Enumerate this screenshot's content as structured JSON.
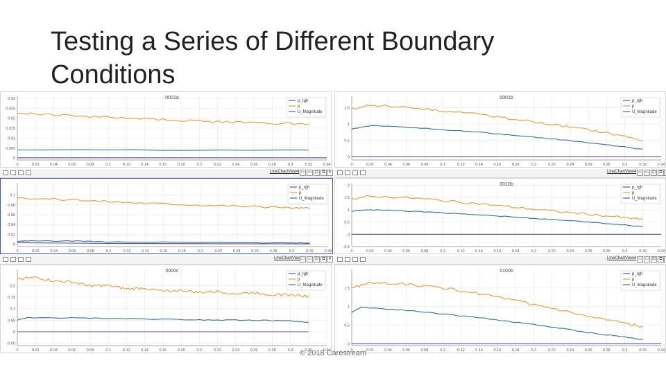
{
  "slide": {
    "title": "Testing a Series of Different Boundary Conditions",
    "footer": "© 2018 Carestream"
  },
  "toolbar": {
    "view_label": "LineChartView4",
    "buttons": [
      "▭",
      "▭",
      "⊡",
      "⧉",
      "✕"
    ]
  },
  "colors": {
    "p_rgh": "#5b4bb0",
    "p": "#ef9a2a",
    "U_Magnitude": "#2f6fa8",
    "grid": "#e6e6e6"
  },
  "chart_data": [
    {
      "type": "line",
      "title": "0001a",
      "xlim": [
        0,
        0.34
      ],
      "xticks": [
        "0",
        "0.02",
        "0.04",
        "0.06",
        "0.08",
        "0.1",
        "0.12",
        "0.14",
        "0.16",
        "0.18",
        "0.2",
        "0.22",
        "0.24",
        "0.26",
        "0.28",
        "0.3",
        "0.32",
        "0.34"
      ],
      "ylim": [
        -0.001,
        0.031
      ],
      "yticks": [
        "0",
        "0.005",
        "0.01",
        "0.015",
        "0.02",
        "0.025",
        "0.03"
      ],
      "legend": [
        "p_rgh",
        "p",
        "U_Magnitude"
      ],
      "legend_position": "top-right",
      "series": [
        {
          "name": "p_rgh",
          "x": [
            0,
            0.34
          ],
          "y": [
            0.0001,
            0.0001
          ]
        },
        {
          "name": "p",
          "x": [
            0,
            0.05,
            0.1,
            0.15,
            0.2,
            0.25,
            0.3,
            0.32
          ],
          "y": [
            0.0225,
            0.0215,
            0.0205,
            0.0195,
            0.0185,
            0.0178,
            0.0172,
            0.017
          ]
        },
        {
          "name": "U_Magnitude",
          "x": [
            0,
            0.32
          ],
          "y": [
            0.004,
            0.004
          ]
        }
      ]
    },
    {
      "type": "line",
      "title": "0001b",
      "xlim": [
        0,
        0.34
      ],
      "xticks": [
        "0",
        "0.02",
        "0.04",
        "0.06",
        "0.08",
        "0.1",
        "0.12",
        "0.14",
        "0.16",
        "0.18",
        "0.2",
        "0.22",
        "0.24",
        "0.26",
        "0.28",
        "0.3",
        "0.32",
        "0.34"
      ],
      "ylim": [
        -0.1,
        1.85
      ],
      "yticks": [
        "0",
        "0.5",
        "1",
        "1.5"
      ],
      "legend": [
        "p_rgh",
        "p",
        "U_Magnitude"
      ],
      "legend_position": "top-right",
      "series": [
        {
          "name": "p_rgh",
          "x": [
            0,
            0.34
          ],
          "y": [
            0,
            0
          ]
        },
        {
          "name": "p",
          "x": [
            0,
            0.02,
            0.06,
            0.1,
            0.14,
            0.18,
            0.22,
            0.26,
            0.3,
            0.32
          ],
          "y": [
            1.45,
            1.58,
            1.52,
            1.4,
            1.3,
            1.15,
            0.98,
            0.82,
            0.62,
            0.5
          ]
        },
        {
          "name": "U_Magnitude",
          "x": [
            0,
            0.02,
            0.06,
            0.1,
            0.14,
            0.18,
            0.22,
            0.26,
            0.3,
            0.32
          ],
          "y": [
            0.85,
            0.95,
            0.9,
            0.83,
            0.75,
            0.65,
            0.55,
            0.43,
            0.3,
            0.22
          ]
        }
      ]
    },
    {
      "type": "line",
      "title": "",
      "xlim": [
        0,
        0.34
      ],
      "xticks": [
        "0",
        "0.02",
        "0.04",
        "0.06",
        "0.08",
        "0.1",
        "0.12",
        "0.14",
        "0.16",
        "0.18",
        "0.2",
        "0.22",
        "0.24",
        "0.26",
        "0.28",
        "0.3",
        "0.32",
        "0.34"
      ],
      "ylim": [
        -0.005,
        0.125
      ],
      "yticks": [
        "0",
        "0.02",
        "0.04",
        "0.06",
        "0.08",
        "0.1"
      ],
      "legend": [
        "p_rgh",
        "p",
        "U_Magnitude"
      ],
      "legend_position": "top-right",
      "series": [
        {
          "name": "p_rgh",
          "x": [
            0,
            0.02,
            0.06,
            0.1,
            0.2,
            0.3,
            0.32
          ],
          "y": [
            0.003,
            0.0025,
            0.002,
            0.0015,
            0.001,
            0.0005,
            0.0003
          ]
        },
        {
          "name": "p",
          "x": [
            0,
            0.05,
            0.1,
            0.15,
            0.2,
            0.25,
            0.3,
            0.32
          ],
          "y": [
            0.095,
            0.091,
            0.087,
            0.083,
            0.08,
            0.077,
            0.074,
            0.073
          ]
        },
        {
          "name": "U_Magnitude",
          "x": [
            0,
            0.01,
            0.06,
            0.1,
            0.2,
            0.3,
            0.32
          ],
          "y": [
            0.0055,
            0.0065,
            0.0062,
            0.0048,
            0.0035,
            0.0025,
            0.0022
          ]
        }
      ]
    },
    {
      "type": "line",
      "title": "0010b",
      "xlim": [
        0,
        0.34
      ],
      "xticks": [
        "0",
        "0.02",
        "0.04",
        "0.06",
        "0.08",
        "0.1",
        "0.12",
        "0.14",
        "0.16",
        "0.18",
        "0.2",
        "0.22",
        "0.24",
        "0.26",
        "0.28",
        "0.3",
        "0.32",
        "0.34"
      ],
      "ylim": [
        -0.5,
        2.1
      ],
      "yticks": [
        "-0.5",
        "0",
        "0.5",
        "1",
        "1.5",
        "2"
      ],
      "legend": [
        "p_rgh",
        "p",
        "U_Magnitude"
      ],
      "legend_position": "top-right",
      "series": [
        {
          "name": "p_rgh",
          "x": [
            0,
            0.34
          ],
          "y": [
            0,
            0
          ]
        },
        {
          "name": "p",
          "x": [
            0,
            0.02,
            0.06,
            0.1,
            0.14,
            0.18,
            0.22,
            0.26,
            0.3,
            0.32
          ],
          "y": [
            1.45,
            1.55,
            1.5,
            1.38,
            1.25,
            1.1,
            0.95,
            0.82,
            0.68,
            0.6
          ]
        },
        {
          "name": "U_Magnitude",
          "x": [
            0,
            0.02,
            0.06,
            0.1,
            0.14,
            0.18,
            0.22,
            0.26,
            0.3,
            0.32
          ],
          "y": [
            0.95,
            1,
            0.95,
            0.88,
            0.8,
            0.7,
            0.6,
            0.5,
            0.38,
            0.32
          ]
        }
      ]
    },
    {
      "type": "line",
      "title": "0000c",
      "xlim": [
        0,
        0.34
      ],
      "xticks": [
        "0",
        "0.02",
        "0.04",
        "0.06",
        "0.08",
        "0.1",
        "0.12",
        "0.14",
        "0.16",
        "0.18",
        "0.2",
        "0.22",
        "0.24",
        "0.26",
        "0.28",
        "0.3",
        "0.32",
        "0.34"
      ],
      "ylim": [
        -0.06,
        0.27
      ],
      "yticks": [
        "-0.05",
        "0",
        "0.05",
        "0.1",
        "0.15",
        "0.2"
      ],
      "legend": [
        "p_rgh",
        "p",
        "U_Magnitude"
      ],
      "legend_position": "top-right",
      "series": [
        {
          "name": "p_rgh",
          "x": [
            0,
            0.32
          ],
          "y": [
            0,
            0
          ]
        },
        {
          "name": "p",
          "x": [
            0,
            0.02,
            0.04,
            0.06,
            0.08,
            0.1,
            0.12,
            0.14,
            0.16,
            0.18,
            0.2,
            0.22,
            0.24,
            0.26,
            0.28,
            0.3,
            0.32
          ],
          "y": [
            0.23,
            0.235,
            0.22,
            0.215,
            0.2,
            0.2,
            0.185,
            0.19,
            0.175,
            0.18,
            0.17,
            0.175,
            0.165,
            0.17,
            0.16,
            0.16,
            0.155
          ]
        },
        {
          "name": "U_Magnitude",
          "x": [
            0,
            0.01,
            0.05,
            0.1,
            0.15,
            0.2,
            0.25,
            0.3,
            0.32
          ],
          "y": [
            0.05,
            0.06,
            0.06,
            0.058,
            0.055,
            0.052,
            0.05,
            0.047,
            0.04
          ]
        }
      ]
    },
    {
      "type": "line",
      "title": "0100b",
      "xlim": [
        0,
        0.34
      ],
      "xticks": [
        "0",
        "0.02",
        "0.04",
        "0.06",
        "0.08",
        "0.1",
        "0.12",
        "0.14",
        "0.16",
        "0.18",
        "0.2",
        "0.22",
        "0.24",
        "0.26",
        "0.28",
        "0.3",
        "0.32",
        "0.34"
      ],
      "ylim": [
        -0.05,
        2.0
      ],
      "yticks": [
        "0",
        "0.5",
        "1",
        "1.5"
      ],
      "legend": [
        "p_rgh",
        "p",
        "U_Magnitude"
      ],
      "legend_position": "top-right",
      "series": [
        {
          "name": "p_rgh",
          "x": [
            0,
            0.34
          ],
          "y": [
            0,
            0
          ]
        },
        {
          "name": "p",
          "x": [
            0,
            0.02,
            0.06,
            0.1,
            0.14,
            0.18,
            0.22,
            0.26,
            0.3,
            0.32
          ],
          "y": [
            1.5,
            1.65,
            1.6,
            1.5,
            1.35,
            1.15,
            0.95,
            0.72,
            0.55,
            0.45
          ]
        },
        {
          "name": "U_Magnitude",
          "x": [
            0,
            0.01,
            0.06,
            0.1,
            0.14,
            0.18,
            0.22,
            0.26,
            0.3,
            0.32
          ],
          "y": [
            0.85,
            0.98,
            0.9,
            0.8,
            0.7,
            0.58,
            0.45,
            0.3,
            0.18,
            0.12
          ]
        }
      ]
    }
  ]
}
